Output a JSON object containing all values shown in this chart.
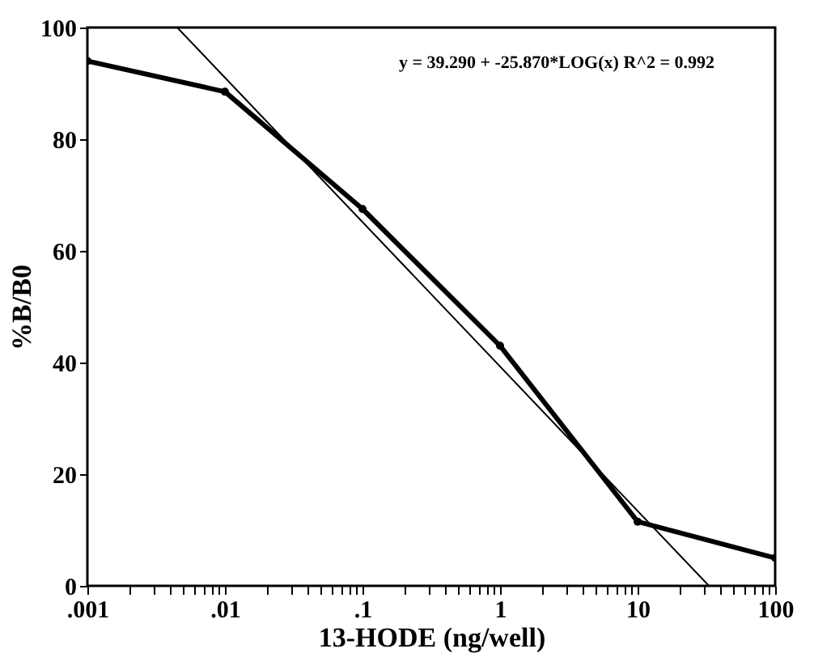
{
  "chart_data": {
    "type": "line",
    "xlabel": "13-HODE (ng/well)",
    "ylabel": "%B/B0",
    "log": "x",
    "grid": false,
    "annotations": [
      "y = 39.290 + -25.870*LOG(x)    R^2 = 0.992"
    ],
    "xlim": [
      0.001,
      100
    ],
    "xticks": [
      {
        "value": 0.001,
        "label": ".001"
      },
      {
        "value": 0.002,
        "label": null
      },
      {
        "value": 0.003,
        "label": null
      },
      {
        "value": 0.004,
        "label": null
      },
      {
        "value": 0.005,
        "label": null
      },
      {
        "value": 0.006,
        "label": null
      },
      {
        "value": 0.007,
        "label": null
      },
      {
        "value": 0.008,
        "label": null
      },
      {
        "value": 0.009,
        "label": null
      },
      {
        "value": 0.01,
        "label": ".01"
      },
      {
        "value": 0.02,
        "label": null
      },
      {
        "value": 0.03,
        "label": null
      },
      {
        "value": 0.04,
        "label": null
      },
      {
        "value": 0.05,
        "label": null
      },
      {
        "value": 0.06,
        "label": null
      },
      {
        "value": 0.07,
        "label": null
      },
      {
        "value": 0.08,
        "label": null
      },
      {
        "value": 0.09,
        "label": null
      },
      {
        "value": 0.1,
        "label": ".1"
      },
      {
        "value": 0.2,
        "label": null
      },
      {
        "value": 0.3,
        "label": null
      },
      {
        "value": 0.4,
        "label": null
      },
      {
        "value": 0.5,
        "label": null
      },
      {
        "value": 0.6,
        "label": null
      },
      {
        "value": 0.7,
        "label": null
      },
      {
        "value": 0.8,
        "label": null
      },
      {
        "value": 0.9,
        "label": null
      },
      1,
      {
        "value": 2,
        "label": null
      },
      {
        "value": 3,
        "label": null
      },
      {
        "value": 4,
        "label": null
      },
      {
        "value": 5,
        "label": null
      },
      {
        "value": 6,
        "label": null
      },
      {
        "value": 7,
        "label": null
      },
      {
        "value": 8,
        "label": null
      },
      {
        "value": 9,
        "label": null
      },
      10,
      {
        "value": 20,
        "label": null
      },
      {
        "value": 30,
        "label": null
      },
      {
        "value": 40,
        "label": null
      },
      {
        "value": 50,
        "label": null
      },
      {
        "value": 60,
        "label": null
      },
      {
        "value": 70,
        "label": null
      },
      {
        "value": 80,
        "label": null
      },
      {
        "value": 90,
        "label": null
      },
      100
    ],
    "ylim": [
      0,
      100
    ],
    "yticks": [
      0,
      20,
      40,
      60,
      80,
      100
    ],
    "series": [
      {
        "color": "#000000",
        "marker": "circle",
        "x": [
          0.001,
          0.01,
          0.1,
          1,
          10,
          100
        ],
        "values": [
          94,
          88.5,
          67.5,
          43,
          11.5,
          5
        ]
      },
      {
        "color": "#000000",
        "marker": "none",
        "x": [
          0.0045,
          33
        ],
        "values": [
          100,
          0
        ]
      }
    ]
  }
}
